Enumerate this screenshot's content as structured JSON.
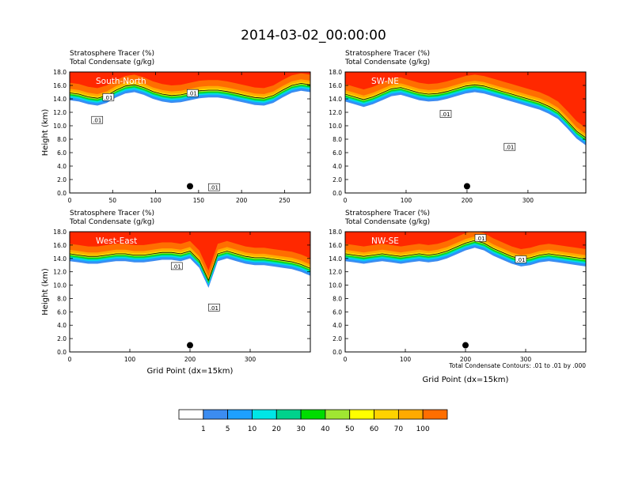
{
  "title": "2014-03-02_00:00:00",
  "colors": {
    "levels": [
      "#ffffff",
      "#3c8cf0",
      "#1ea0ff",
      "#00e6e6",
      "#00d28c",
      "#00dc00",
      "#a0e632",
      "#ffff00",
      "#ffd200",
      "#ffaa00",
      "#ff6e00",
      "#ff2800"
    ]
  },
  "chart_data": [
    {
      "type": "heatmap",
      "subtitle_line1": "Stratosphere Tracer   (%)",
      "subtitle_line2": "Total Condensate   (g/kg)",
      "panel_label": "South-North",
      "ylabel": "Height (km)",
      "xlabel": "",
      "xlim": [
        0,
        280
      ],
      "ylim": [
        0,
        18
      ],
      "xticks": [
        0,
        50,
        100,
        150,
        200,
        250
      ],
      "yticks": [
        "0.0",
        "2.0",
        "4.0",
        "6.0",
        "8.0",
        "10.0",
        "12.0",
        "14.0",
        "16.0",
        "18.0"
      ],
      "tropopause_km": [
        15.2,
        15.0,
        14.6,
        14.4,
        14.8,
        15.6,
        16.2,
        16.4,
        16.0,
        15.4,
        15.0,
        14.8,
        14.9,
        15.2,
        15.5,
        15.6,
        15.6,
        15.4,
        15.1,
        14.8,
        14.5,
        14.4,
        14.8,
        15.6,
        16.3,
        16.6,
        16.4
      ],
      "marker_x": 140,
      "marker_height_km": 1.0,
      "contour_labels": [
        {
          "text": ".01",
          "x": 45,
          "y": 14.2
        },
        {
          "text": ".01",
          "x": 32,
          "y": 10.8
        },
        {
          "text": ".01",
          "x": 143,
          "y": 14.8
        },
        {
          "text": ".01",
          "x": 168,
          "y": 0.8
        }
      ]
    },
    {
      "type": "heatmap",
      "subtitle_line1": "Stratosphere Tracer   (%)",
      "subtitle_line2": "Total Condensate   (g/kg)",
      "panel_label": "SW-NE",
      "ylabel": "",
      "xlabel": "",
      "xlim": [
        0,
        395
      ],
      "ylim": [
        0,
        18
      ],
      "xticks": [
        0,
        100,
        200,
        300
      ],
      "yticks": [
        "0.0",
        "2.0",
        "4.0",
        "6.0",
        "8.0",
        "10.0",
        "12.0",
        "14.0",
        "16.0",
        "18.0"
      ],
      "tropopause_km": [
        15.0,
        14.6,
        14.2,
        14.6,
        15.2,
        15.8,
        16.0,
        15.6,
        15.2,
        15.0,
        15.1,
        15.4,
        15.8,
        16.2,
        16.4,
        16.2,
        15.8,
        15.4,
        15.0,
        14.6,
        14.2,
        13.8,
        13.2,
        12.4,
        11.0,
        9.5,
        8.5
      ],
      "marker_x": 200,
      "marker_height_km": 1.0,
      "contour_labels": [
        {
          "text": ".01",
          "x": 165,
          "y": 11.7
        },
        {
          "text": ".01",
          "x": 270,
          "y": 6.8
        }
      ]
    },
    {
      "type": "heatmap",
      "subtitle_line1": "Stratosphere Tracer   (%)",
      "subtitle_line2": "Total Condensate   (g/kg)",
      "panel_label": "West-East",
      "ylabel": "Height (km)",
      "xlabel": "Grid Point (dx=15km)",
      "xlim": [
        0,
        400
      ],
      "ylim": [
        0,
        18
      ],
      "xticks": [
        0,
        100,
        200,
        300
      ],
      "yticks": [
        "0.0",
        "2.0",
        "4.0",
        "6.0",
        "8.0",
        "10.0",
        "12.0",
        "14.0",
        "16.0",
        "18.0"
      ],
      "tropopause_km": [
        15.0,
        14.8,
        14.6,
        14.6,
        14.8,
        15.0,
        15.0,
        14.8,
        14.8,
        15.0,
        15.2,
        15.2,
        15.0,
        15.4,
        14.0,
        11.0,
        15.0,
        15.4,
        15.0,
        14.6,
        14.4,
        14.4,
        14.2,
        14.0,
        13.8,
        13.4,
        12.8
      ],
      "marker_x": 200,
      "marker_height_km": 1.0,
      "contour_labels": [
        {
          "text": ".01",
          "x": 178,
          "y": 12.8
        },
        {
          "text": ".01",
          "x": 240,
          "y": 6.6
        }
      ]
    },
    {
      "type": "heatmap",
      "subtitle_line1": "Stratosphere Tracer   (%)",
      "subtitle_line2": "Total Condensate   (g/kg)",
      "panel_label": "NW-SE",
      "ylabel": "",
      "xlabel": "Grid Point (dx=15km)",
      "xlim": [
        0,
        400
      ],
      "ylim": [
        0,
        18
      ],
      "xticks": [
        0,
        100,
        200,
        300
      ],
      "yticks": [
        "0.0",
        "2.0",
        "4.0",
        "6.0",
        "8.0",
        "10.0",
        "12.0",
        "14.0",
        "16.0",
        "18.0"
      ],
      "tropopause_km": [
        15.0,
        14.8,
        14.6,
        14.8,
        15.0,
        14.8,
        14.6,
        14.8,
        15.0,
        14.8,
        15.0,
        15.4,
        16.0,
        16.6,
        17.0,
        16.6,
        15.8,
        15.2,
        14.6,
        14.2,
        14.4,
        14.8,
        15.0,
        14.8,
        14.6,
        14.4,
        14.2
      ],
      "marker_x": 200,
      "marker_height_km": 1.0,
      "contour_labels": [
        {
          "text": ".01",
          "x": 225,
          "y": 17.0
        },
        {
          "text": ".01",
          "x": 292,
          "y": 13.8
        }
      ],
      "contour_note": "Total Condensate Contours: .01 to .01 by .000"
    }
  ],
  "colorbar": {
    "labels": [
      "1",
      "5",
      "10",
      "20",
      "30",
      "40",
      "50",
      "60",
      "70",
      "100"
    ]
  }
}
